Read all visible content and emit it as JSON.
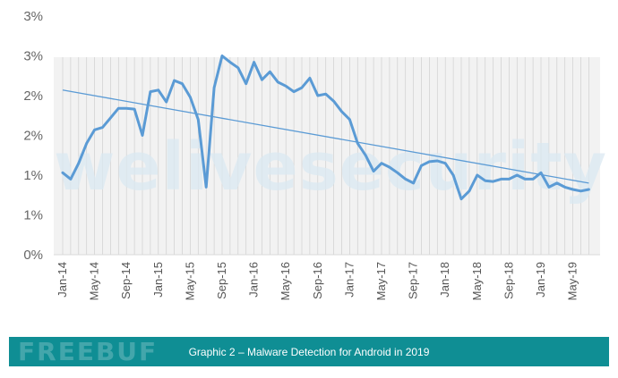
{
  "chart_data": {
    "type": "line",
    "y_ticks": [
      "0%",
      "1%",
      "1%",
      "2%",
      "2%",
      "3%",
      "3%"
    ],
    "ylim": [
      0,
      3
    ],
    "x_ticks": [
      "Jan-14",
      "May-14",
      "Sep-14",
      "Jan-15",
      "May-15",
      "Sep-15",
      "Jan-16",
      "May-16",
      "Sep-16",
      "Jan-17",
      "May-17",
      "Sep-17",
      "Jan-18",
      "May-18",
      "Sep-18",
      "Jan-19",
      "May-19"
    ],
    "x": [
      "Jan-14",
      "Feb-14",
      "Mar-14",
      "Apr-14",
      "May-14",
      "Jun-14",
      "Jul-14",
      "Aug-14",
      "Sep-14",
      "Oct-14",
      "Nov-14",
      "Dec-14",
      "Jan-15",
      "Feb-15",
      "Mar-15",
      "Apr-15",
      "May-15",
      "Jun-15",
      "Jul-15",
      "Aug-15",
      "Sep-15",
      "Oct-15",
      "Nov-15",
      "Dec-15",
      "Jan-16",
      "Feb-16",
      "Mar-16",
      "Apr-16",
      "May-16",
      "Jun-16",
      "Jul-16",
      "Aug-16",
      "Sep-16",
      "Oct-16",
      "Nov-16",
      "Dec-16",
      "Jan-17",
      "Feb-17",
      "Mar-17",
      "Apr-17",
      "May-17",
      "Jun-17",
      "Jul-17",
      "Aug-17",
      "Sep-17",
      "Oct-17",
      "Nov-17",
      "Dec-17",
      "Jan-18",
      "Feb-18",
      "Mar-18",
      "Apr-18",
      "May-18",
      "Jun-18",
      "Jul-18",
      "Aug-18",
      "Sep-18",
      "Oct-18",
      "Nov-18",
      "Dec-18",
      "Jan-19",
      "Feb-19",
      "Mar-19",
      "Apr-19",
      "May-19",
      "Jun-19",
      "Jul-19"
    ],
    "series": [
      {
        "color": "#5b9bd5",
        "values": [
          1.03,
          0.95,
          1.15,
          1.4,
          1.57,
          1.6,
          1.72,
          1.84,
          1.84,
          1.83,
          1.5,
          2.05,
          2.07,
          1.92,
          2.19,
          2.15,
          1.98,
          1.7,
          0.85,
          2.1,
          2.5,
          2.42,
          2.35,
          2.15,
          2.42,
          2.2,
          2.3,
          2.17,
          2.12,
          2.05,
          2.1,
          2.22,
          2.0,
          2.02,
          1.93,
          1.8,
          1.7,
          1.4,
          1.25,
          1.05,
          1.15,
          1.1,
          1.03,
          0.95,
          0.9,
          1.12,
          1.17,
          1.18,
          1.15,
          1.0,
          0.7,
          0.8,
          1.0,
          0.93,
          0.92,
          0.95,
          0.95,
          1.0,
          0.95,
          0.95,
          1.03,
          0.85,
          0.9,
          0.85,
          0.82,
          0.8,
          0.82
        ]
      }
    ],
    "trendline": {
      "color": "#5b9bd5",
      "start": [
        "Jan-14",
        2.07
      ],
      "end": [
        "Jul-19",
        0.9
      ]
    },
    "grid": "vertical lines per month",
    "legend": "none"
  },
  "watermark": {
    "text": "welivesecurity"
  },
  "caption": {
    "text": "Graphic 2 – Malware Detection for Android in 2019"
  },
  "footer_watermark": {
    "text": "FREEBUF"
  },
  "colors": {
    "caption_bg": "#0f8e94",
    "plot_bg": "#f2f2f2",
    "line": "#5b9bd5"
  }
}
